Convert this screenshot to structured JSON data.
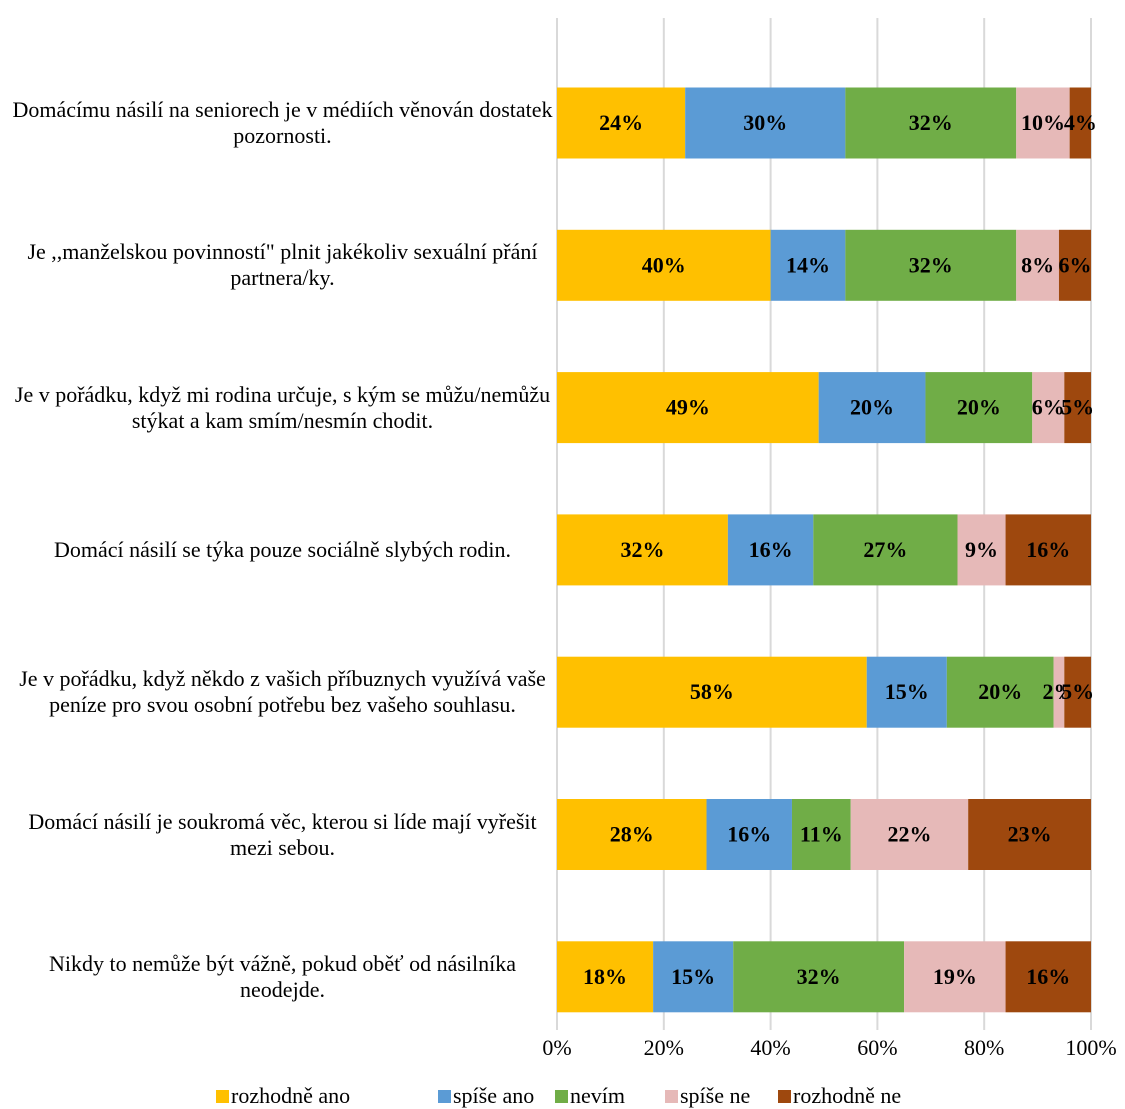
{
  "chart_data": {
    "type": "stacked-barh",
    "categories": [
      "Domácímu násilí na seniorech je v médiích věnován dostatek pozornosti.",
      "Je ,,manželskou povinností\" plnit jakékoliv sexuální přání partnera/ky.",
      "Je v pořádku, když mi rodina určuje, s kým se můžu/nemůžu stýkat a kam smím/nesmín chodit.",
      "Domácí násilí se týka pouze sociálně slybých rodin.",
      "Je v pořádku, když někdo z vašich příbuznych využívá vaše peníze pro svou osobní potřebu bez vašeho souhlasu.",
      "Domácí násilí je soukromá věc, kterou si lídе mají vyřešit mezi sebou.",
      "Nikdy to nemůže být vážně, pokud oběť od násilníka neodejde."
    ],
    "series": [
      {
        "name": "rozhodně ano",
        "color": "#FFC000",
        "values": [
          24,
          40,
          49,
          32,
          58,
          28,
          18
        ],
        "value_labels": [
          "24%",
          "40%",
          "49%",
          "32%",
          "58%",
          "28%",
          "18%"
        ]
      },
      {
        "name": "spíše ano",
        "color": "#5B9BD5",
        "values": [
          30,
          14,
          20,
          16,
          15,
          16,
          15
        ],
        "value_labels": [
          "30%",
          "14%",
          "20%",
          "16%",
          "15%",
          "16%",
          "15%"
        ]
      },
      {
        "name": "nevím",
        "color": "#70AD47",
        "values": [
          32,
          32,
          20,
          27,
          20,
          11,
          32
        ],
        "value_labels": [
          "32%",
          "32%",
          "20%",
          "27%",
          "20%",
          "11%",
          "32%"
        ]
      },
      {
        "name": "spíše ne",
        "color": "#E6B9B8",
        "values": [
          10,
          8,
          6,
          9,
          2,
          22,
          19
        ],
        "value_labels": [
          "10%",
          "8%",
          "6%",
          "9%",
          "2%",
          "22%",
          "19%"
        ]
      },
      {
        "name": "rozhodně ne",
        "color": "#9E480E",
        "values": [
          4,
          6,
          5,
          16,
          5,
          23,
          16
        ],
        "value_labels": [
          "4%",
          "6%",
          "5%",
          "16%",
          "5%",
          "23%",
          "16%"
        ]
      }
    ],
    "xlim": [
      0,
      100
    ],
    "xticks": [
      {
        "value": 0,
        "label": "0%"
      },
      {
        "value": 20,
        "label": "20%"
      },
      {
        "value": 40,
        "label": "40%"
      },
      {
        "value": 60,
        "label": "60%"
      },
      {
        "value": 80,
        "label": "80%"
      },
      {
        "value": 100,
        "label": "100%"
      }
    ],
    "grid": true,
    "legend": "bottom"
  }
}
